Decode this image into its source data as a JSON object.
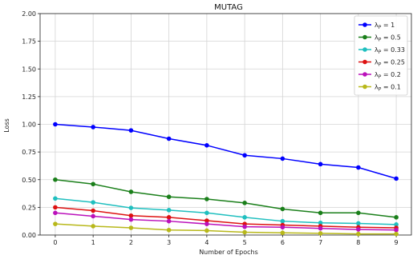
{
  "chart_data": {
    "type": "line",
    "title": "MUTAG",
    "xlabel": "Number of Epochs",
    "ylabel": "Loss",
    "x": [
      0,
      1,
      2,
      3,
      4,
      5,
      6,
      7,
      8,
      9
    ],
    "xlim": [
      -0.4,
      9.4
    ],
    "ylim": [
      0,
      2.0
    ],
    "yticks": [
      "0.00",
      "0.25",
      "0.50",
      "0.75",
      "1.00",
      "1.25",
      "1.50",
      "1.75",
      "2.00"
    ],
    "grid": true,
    "legend_position": "top-right",
    "series": [
      {
        "name": "λ_P = 1",
        "legend_sub": "P",
        "legend_val": "1",
        "color": "#0000ff",
        "values": [
          1.0,
          0.975,
          0.945,
          0.87,
          0.81,
          0.72,
          0.69,
          0.64,
          0.61,
          0.51
        ]
      },
      {
        "name": "λ_P = 0.5",
        "legend_sub": "P",
        "legend_val": "0.5",
        "color": "#1a7f1a",
        "values": [
          0.5,
          0.46,
          0.39,
          0.345,
          0.325,
          0.29,
          0.235,
          0.2,
          0.2,
          0.16
        ]
      },
      {
        "name": "λ_P = 0.33",
        "legend_sub": "P",
        "legend_val": "0.33",
        "color": "#1fbfbf",
        "values": [
          0.33,
          0.295,
          0.245,
          0.225,
          0.2,
          0.16,
          0.125,
          0.11,
          0.105,
          0.095
        ]
      },
      {
        "name": "λ_P = 0.25",
        "legend_sub": "P",
        "legend_val": "0.25",
        "color": "#dd1111",
        "values": [
          0.25,
          0.22,
          0.175,
          0.16,
          0.13,
          0.1,
          0.09,
          0.08,
          0.07,
          0.065
        ]
      },
      {
        "name": "λ_P = 0.2",
        "legend_sub": "P",
        "legend_val": "0.2",
        "color": "#bb11bb",
        "values": [
          0.2,
          0.17,
          0.14,
          0.125,
          0.1,
          0.075,
          0.07,
          0.06,
          0.05,
          0.045
        ]
      },
      {
        "name": "λ_P = 0.1",
        "legend_sub": "P",
        "legend_val": "0.1",
        "color": "#b8b81a",
        "values": [
          0.1,
          0.08,
          0.065,
          0.045,
          0.04,
          0.025,
          0.02,
          0.015,
          0.01,
          0.01
        ]
      }
    ]
  }
}
